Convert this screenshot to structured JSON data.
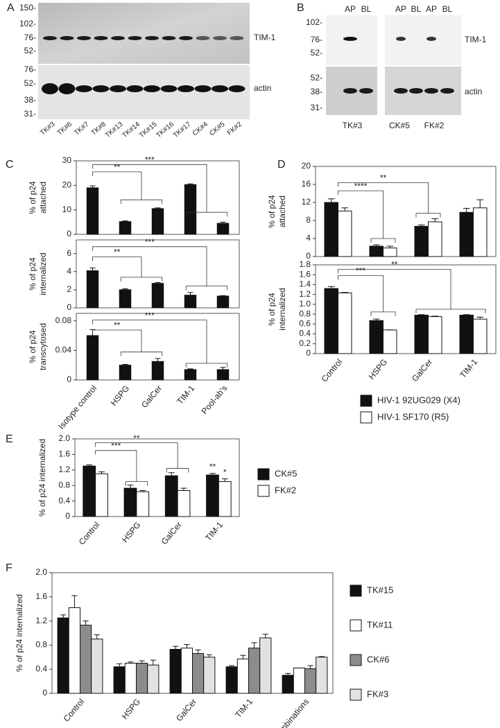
{
  "panel_labels": [
    "A",
    "B",
    "C",
    "D",
    "E",
    "F"
  ],
  "blots": {
    "A": {
      "markers_top": [
        "150-",
        "102-",
        "76-",
        "52-"
      ],
      "markers_bottom": [
        "76-",
        "52-",
        "38-",
        "31-"
      ],
      "band_top": "TIM-1",
      "band_bottom": "actin",
      "lanes": [
        "TK#3",
        "TK#6",
        "TK#7",
        "TK#8",
        "TK#13",
        "TK#14",
        "TK#15",
        "TK#16",
        "TK#17",
        "CK#4",
        "CK#5",
        "FK#2"
      ]
    },
    "B": {
      "headers": [
        "AP",
        "BL",
        "AP",
        "BL",
        "AP",
        "BL"
      ],
      "markers_top": [
        "102-",
        "76-",
        "52-"
      ],
      "markers_bottom": [
        "52-",
        "38-",
        "31-"
      ],
      "band_top": "TIM-1",
      "band_bottom": "actin",
      "groups": [
        "TK#3",
        "CK#5",
        "FK#2"
      ]
    }
  },
  "chart_data": [
    {
      "type": "bar",
      "ylabel": [
        "% of p24",
        "attached"
      ],
      "values": [
        19,
        5.2,
        10.5,
        20.3,
        4.5
      ],
      "errors": [
        0.8,
        0.3,
        0.3,
        0.3,
        0.5
      ],
      "color": "#111111",
      "ylim": [
        0,
        30
      ],
      "yticks": [
        0,
        10,
        20,
        30
      ],
      "annotations": [
        "**",
        "***"
      ]
    },
    {
      "type": "bar",
      "ylabel": [
        "% of p24",
        "internalized"
      ],
      "values": [
        4.1,
        2.0,
        2.7,
        1.4,
        1.3
      ],
      "errors": [
        0.3,
        0.1,
        0.1,
        0.3,
        0.05
      ],
      "color": "#111111",
      "ylim": [
        0,
        7.5
      ],
      "yticks": [
        0,
        2,
        4,
        6
      ],
      "annotations": [
        "**",
        "***"
      ]
    },
    {
      "type": "bar",
      "ylabel": [
        "% of p24",
        "transcytosed"
      ],
      "categories": [
        "Isotype control",
        "HSPG",
        "GalCer",
        "TIM-1",
        "Pool-ab's"
      ],
      "values": [
        0.06,
        0.02,
        0.025,
        0.014,
        0.014
      ],
      "errors": [
        0.008,
        0.001,
        0.004,
        0.001,
        0.003
      ],
      "color": "#111111",
      "ylim": [
        0,
        0.09
      ],
      "yticks": [
        0,
        0.04,
        0.08
      ],
      "annotations": [
        "**",
        "***"
      ]
    },
    {
      "type": "bar",
      "ylabel": [
        "% of p24",
        "attached"
      ],
      "series": [
        {
          "values": [
            12,
            2.3,
            6.7,
            9.8
          ],
          "errors": [
            0.8,
            0.3,
            0.3,
            0.9
          ],
          "color": "#111111"
        },
        {
          "values": [
            10.1,
            1.9,
            7.7,
            10.8
          ],
          "errors": [
            0.7,
            0.4,
            0.7,
            1.8
          ],
          "color": "#ffffff"
        }
      ],
      "ylim": [
        0,
        20
      ],
      "yticks": [
        0,
        4,
        8,
        12,
        16,
        20
      ],
      "annotations": [
        "****",
        "**"
      ]
    },
    {
      "type": "bar",
      "ylabel": [
        "% of p24",
        "internalized"
      ],
      "categories": [
        "Control",
        "HSPG",
        "GalCer",
        "TIM-1"
      ],
      "series": [
        {
          "name": "HIV-1 92UG029 (X4)",
          "values": [
            1.32,
            0.67,
            0.78,
            0.78
          ],
          "errors": [
            0.04,
            0.03,
            0.01,
            0.01
          ],
          "color": "#111111"
        },
        {
          "name": "HIV-1 SF170 (R5)",
          "values": [
            1.23,
            0.48,
            0.75,
            0.7
          ],
          "errors": [
            0.01,
            0,
            0.01,
            0.04
          ],
          "color": "#ffffff"
        }
      ],
      "ylim": [
        0,
        1.8
      ],
      "yticks": [
        0,
        0.2,
        0.4,
        0.6,
        0.8,
        {
          "value": 1,
          "label": "1.0"
        },
        1.2,
        1.4,
        1.6,
        1.8
      ],
      "annotations": [
        "***",
        "**"
      ]
    },
    {
      "type": "bar",
      "ylabel": "% of p24 internalized",
      "categories": [
        "Control",
        "HSPG",
        "GalCer",
        "TIM-1"
      ],
      "series": [
        {
          "name": "CK#5",
          "values": [
            1.3,
            0.73,
            1.05,
            1.07
          ],
          "errors": [
            0.03,
            0.08,
            0.08,
            0.04
          ],
          "color": "#111111"
        },
        {
          "name": "FK#2",
          "values": [
            1.1,
            0.64,
            0.67,
            0.9
          ],
          "errors": [
            0.05,
            0.03,
            0.06,
            0.07
          ],
          "color": "#ffffff"
        }
      ],
      "ylim": [
        0,
        2
      ],
      "yticks": [
        0,
        0.4,
        0.8,
        1.2,
        1.6,
        {
          "value": 2,
          "label": "2.0"
        }
      ],
      "annotations": [
        "***",
        "**",
        "**",
        "*"
      ]
    },
    {
      "type": "bar",
      "ylabel": "% of p24 internalized",
      "categories": [
        "Control",
        "HSPG",
        "GalCer",
        "TIM-1",
        "Combinations"
      ],
      "series": [
        {
          "name": "TK#15",
          "values": [
            1.25,
            0.44,
            0.73,
            0.44,
            0.3
          ],
          "errors": [
            0.05,
            0.05,
            0.05,
            0.02,
            0.03
          ],
          "color": "#111111"
        },
        {
          "name": "TK#11",
          "values": [
            1.42,
            0.5,
            0.75,
            0.57,
            0.42
          ],
          "errors": [
            0.2,
            0.02,
            0.06,
            0.06,
            0
          ],
          "color": "#ffffff"
        },
        {
          "name": "CK#6",
          "values": [
            1.13,
            0.5,
            0.66,
            0.75,
            0.41
          ],
          "errors": [
            0.07,
            0.04,
            0.06,
            0.09,
            0.05
          ],
          "color": "#8c8c8c"
        },
        {
          "name": "FK#3",
          "values": [
            0.9,
            0.47,
            0.6,
            0.92,
            0.6
          ],
          "errors": [
            0.07,
            0.08,
            0.04,
            0.06,
            0.01
          ],
          "color": "#e2e2e2"
        }
      ],
      "ylim": [
        0,
        2
      ],
      "yticks": [
        0,
        0.4,
        0.8,
        1.2,
        1.6,
        {
          "value": 2,
          "label": "2.0"
        }
      ]
    }
  ]
}
